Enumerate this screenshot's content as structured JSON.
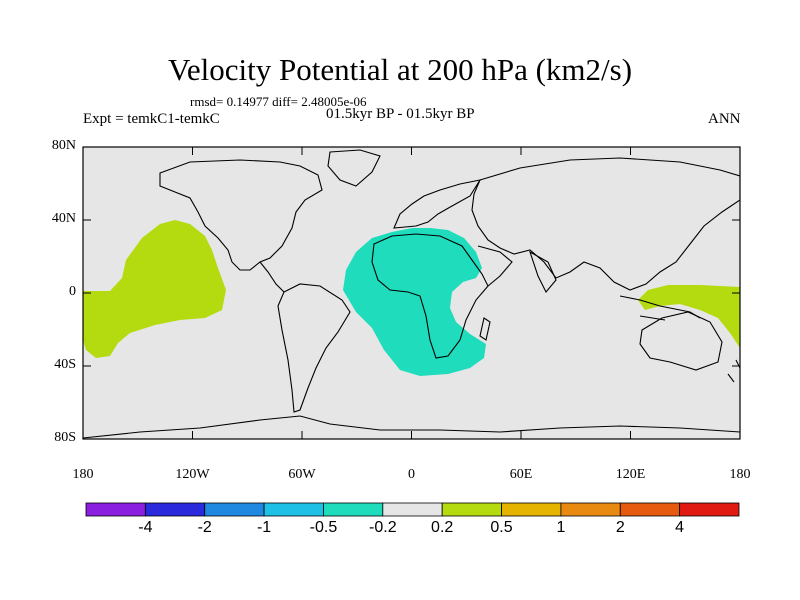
{
  "title": "Velocity Potential at 200 hPa (km2/s)",
  "rmsd_line": "rmsd= 0.14977 diff= 2.48005e-06",
  "expt_label": "Expt = temkC1-temkC",
  "period_label": "01.5kyr BP - 01.5kyr BP",
  "season_label": "ANN",
  "lat_ticks": [
    "80N",
    "40N",
    "0",
    "40S",
    "80S"
  ],
  "lon_ticks": [
    "180",
    "120W",
    "60W",
    "0",
    "60E",
    "120E",
    "180"
  ],
  "colorbar": {
    "colors": [
      "#8a1fe0",
      "#2a2adc",
      "#1f88e0",
      "#1fc0e6",
      "#1fdcbc",
      "#e6e6e6",
      "#b4da10",
      "#e4b400",
      "#e88a10",
      "#e65a10",
      "#e01a10"
    ],
    "labels": [
      "-4",
      "-2",
      "-1",
      "-0.5",
      "-0.2",
      "0.2",
      "0.5",
      "1",
      "2",
      "4"
    ]
  },
  "colors": {
    "background_fill": "#e6e6e6",
    "positive_fill": "#b4da10",
    "negative_fill": "#1fdcbc"
  }
}
